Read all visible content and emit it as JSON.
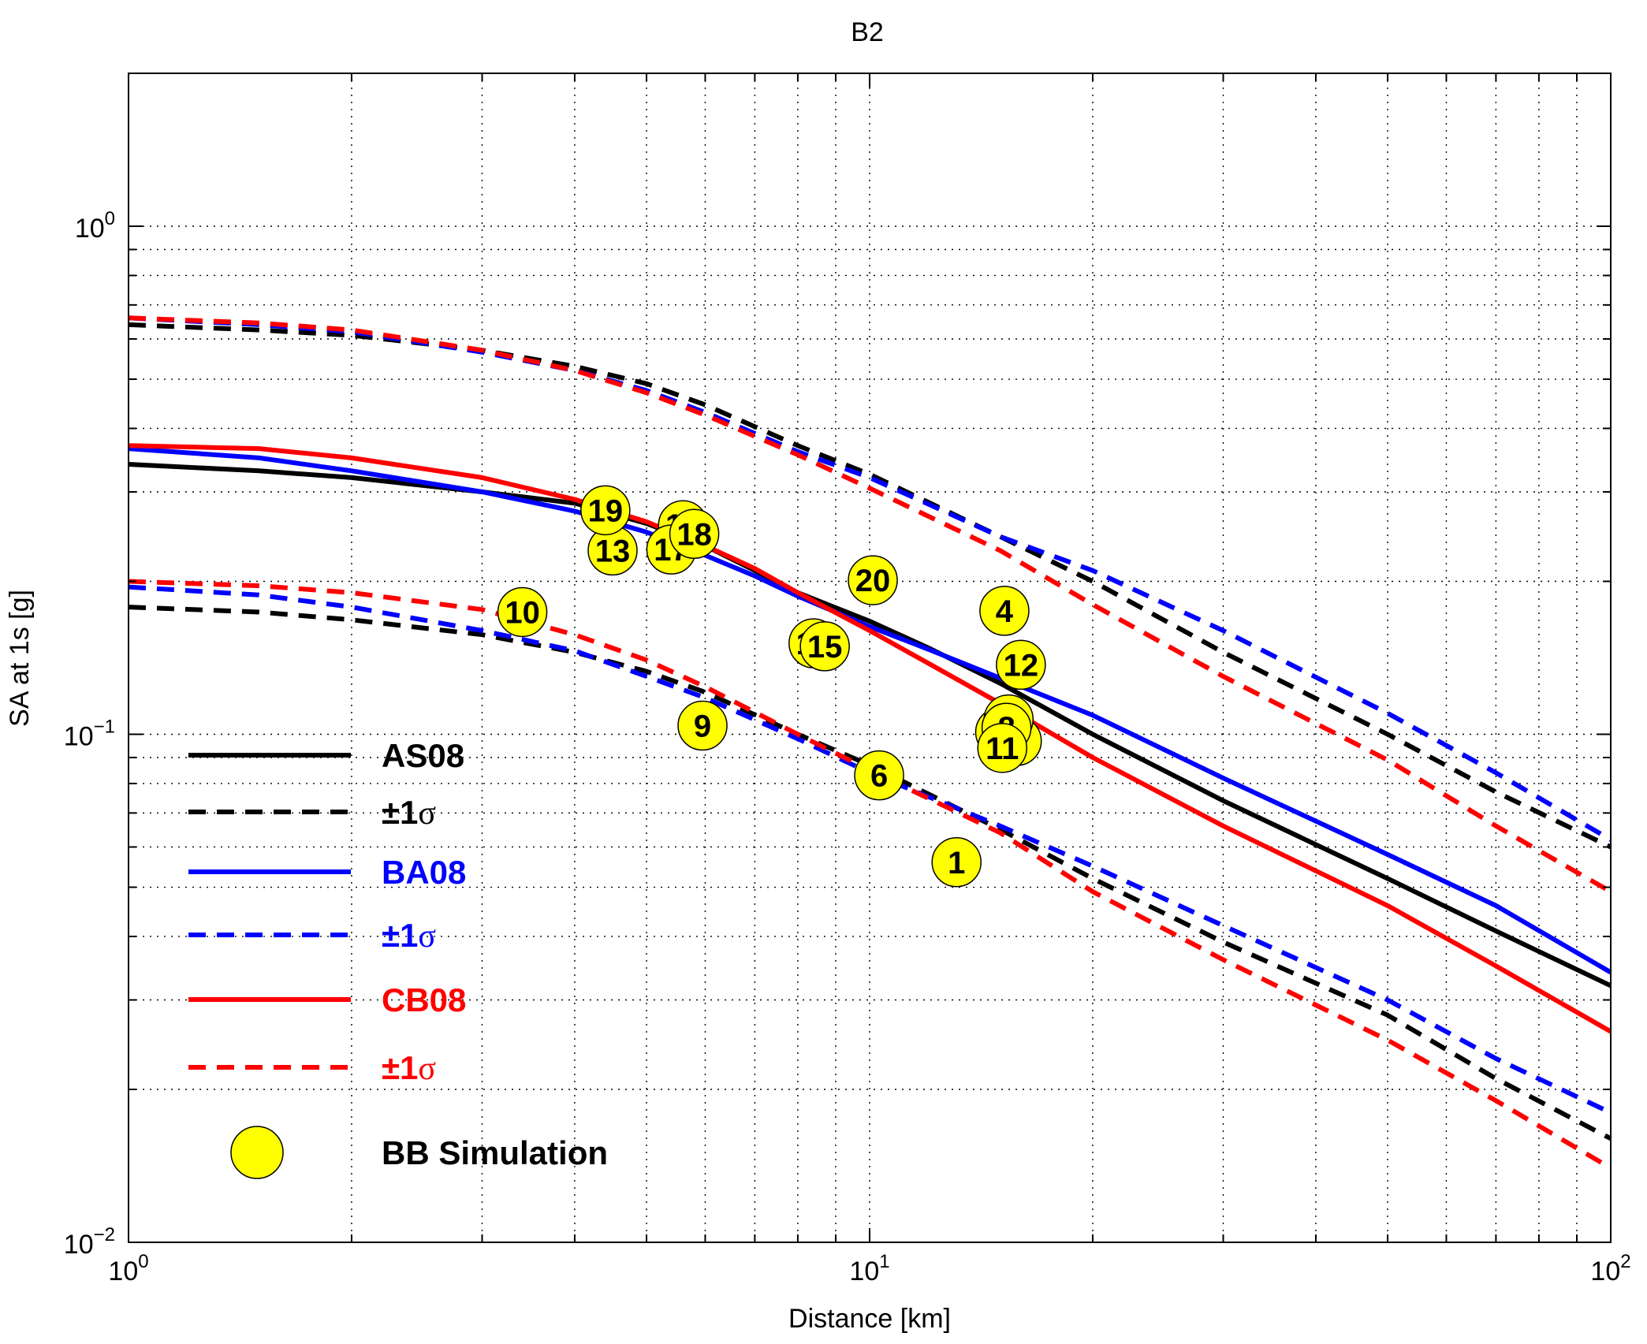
{
  "chart_data": {
    "type": "scatter",
    "title": "B2",
    "xlabel": "Distance [km]",
    "ylabel": "SA at 1s  [g]",
    "x_scale": "log",
    "y_scale": "log",
    "xlim": [
      1,
      100
    ],
    "ylim": [
      0.01,
      2
    ],
    "grid": true,
    "x_ticks": [
      {
        "value": 1,
        "base": "10",
        "exp": "0"
      },
      {
        "value": 10,
        "base": "10",
        "exp": "1"
      },
      {
        "value": 100,
        "base": "10",
        "exp": "2"
      }
    ],
    "y_ticks": [
      {
        "value": 0.01,
        "base": "10",
        "exp": "−2"
      },
      {
        "value": 0.1,
        "base": "10",
        "exp": "−1"
      },
      {
        "value": 1,
        "base": "10",
        "exp": "0"
      }
    ],
    "legend_position": "lower-left",
    "series": [
      {
        "name": "AS08",
        "color": "#000000",
        "style": "solid",
        "points": [
          [
            1,
            0.34
          ],
          [
            1.5,
            0.33
          ],
          [
            2,
            0.32
          ],
          [
            3,
            0.3
          ],
          [
            4,
            0.285
          ],
          [
            5,
            0.26
          ],
          [
            6,
            0.235
          ],
          [
            7,
            0.21
          ],
          [
            8,
            0.19
          ],
          [
            10,
            0.167
          ],
          [
            12,
            0.148
          ],
          [
            15,
            0.126
          ],
          [
            20,
            0.1
          ],
          [
            30,
            0.074
          ],
          [
            50,
            0.052
          ],
          [
            70,
            0.041
          ],
          [
            100,
            0.032
          ]
        ]
      },
      {
        "name": "±1σ",
        "color": "#000000",
        "style": "dashed",
        "points": [
          [
            1,
            0.64
          ],
          [
            1.5,
            0.625
          ],
          [
            2,
            0.61
          ],
          [
            3,
            0.57
          ],
          [
            4,
            0.53
          ],
          [
            5,
            0.49
          ],
          [
            6,
            0.445
          ],
          [
            8,
            0.37
          ],
          [
            10,
            0.325
          ],
          [
            15,
            0.245
          ],
          [
            20,
            0.2
          ],
          [
            30,
            0.145
          ],
          [
            50,
            0.1
          ],
          [
            70,
            0.077
          ],
          [
            100,
            0.06
          ]
        ]
      },
      {
        "name": "±1σ",
        "color": "#000000",
        "style": "dashed",
        "points": [
          [
            1,
            0.178
          ],
          [
            1.5,
            0.174
          ],
          [
            2,
            0.168
          ],
          [
            3,
            0.157
          ],
          [
            4,
            0.145
          ],
          [
            5,
            0.133
          ],
          [
            6,
            0.121
          ],
          [
            8,
            0.1
          ],
          [
            10,
            0.087
          ],
          [
            15,
            0.065
          ],
          [
            20,
            0.052
          ],
          [
            30,
            0.039
          ],
          [
            50,
            0.028
          ],
          [
            70,
            0.021
          ],
          [
            100,
            0.016
          ]
        ]
      },
      {
        "name": "BA08",
        "color": "#0000ff",
        "style": "solid",
        "points": [
          [
            1,
            0.365
          ],
          [
            1.5,
            0.35
          ],
          [
            2,
            0.33
          ],
          [
            3,
            0.3
          ],
          [
            4,
            0.275
          ],
          [
            5,
            0.25
          ],
          [
            6,
            0.225
          ],
          [
            7,
            0.205
          ],
          [
            8,
            0.187
          ],
          [
            10,
            0.163
          ],
          [
            12,
            0.147
          ],
          [
            15,
            0.129
          ],
          [
            20,
            0.109
          ],
          [
            30,
            0.082
          ],
          [
            50,
            0.058
          ],
          [
            70,
            0.046
          ],
          [
            100,
            0.034
          ]
        ]
      },
      {
        "name": "±1σ",
        "color": "#0000ff",
        "style": "dashed",
        "points": [
          [
            1,
            0.66
          ],
          [
            1.5,
            0.64
          ],
          [
            2,
            0.62
          ],
          [
            3,
            0.565
          ],
          [
            4,
            0.52
          ],
          [
            5,
            0.475
          ],
          [
            6,
            0.43
          ],
          [
            8,
            0.36
          ],
          [
            10,
            0.32
          ],
          [
            15,
            0.245
          ],
          [
            20,
            0.21
          ],
          [
            30,
            0.16
          ],
          [
            50,
            0.11
          ],
          [
            70,
            0.084
          ],
          [
            100,
            0.062
          ]
        ]
      },
      {
        "name": "±1σ",
        "color": "#0000ff",
        "style": "dashed",
        "points": [
          [
            1,
            0.195
          ],
          [
            1.5,
            0.188
          ],
          [
            2,
            0.178
          ],
          [
            3,
            0.16
          ],
          [
            4,
            0.146
          ],
          [
            5,
            0.13
          ],
          [
            6,
            0.118
          ],
          [
            8,
            0.098
          ],
          [
            10,
            0.084
          ],
          [
            15,
            0.066
          ],
          [
            20,
            0.055
          ],
          [
            30,
            0.042
          ],
          [
            50,
            0.03
          ],
          [
            70,
            0.023
          ],
          [
            100,
            0.018
          ]
        ]
      },
      {
        "name": "CB08",
        "color": "#ff0000",
        "style": "solid",
        "points": [
          [
            1,
            0.37
          ],
          [
            1.5,
            0.365
          ],
          [
            2,
            0.35
          ],
          [
            3,
            0.32
          ],
          [
            4,
            0.29
          ],
          [
            5,
            0.262
          ],
          [
            6,
            0.235
          ],
          [
            7,
            0.212
          ],
          [
            8,
            0.19
          ],
          [
            10,
            0.16
          ],
          [
            12,
            0.138
          ],
          [
            15,
            0.115
          ],
          [
            20,
            0.09
          ],
          [
            30,
            0.066
          ],
          [
            50,
            0.046
          ],
          [
            70,
            0.035
          ],
          [
            100,
            0.026
          ]
        ]
      },
      {
        "name": "±1σ",
        "color": "#ff0000",
        "style": "dashed",
        "points": [
          [
            1,
            0.66
          ],
          [
            1.5,
            0.645
          ],
          [
            2,
            0.625
          ],
          [
            3,
            0.57
          ],
          [
            4,
            0.52
          ],
          [
            5,
            0.47
          ],
          [
            6,
            0.425
          ],
          [
            8,
            0.355
          ],
          [
            10,
            0.305
          ],
          [
            15,
            0.23
          ],
          [
            20,
            0.18
          ],
          [
            30,
            0.13
          ],
          [
            50,
            0.089
          ],
          [
            70,
            0.066
          ],
          [
            100,
            0.049
          ]
        ]
      },
      {
        "name": "±1σ",
        "color": "#ff0000",
        "style": "dashed",
        "points": [
          [
            1,
            0.2
          ],
          [
            1.5,
            0.196
          ],
          [
            2,
            0.19
          ],
          [
            3,
            0.176
          ],
          [
            4,
            0.157
          ],
          [
            5,
            0.14
          ],
          [
            6,
            0.124
          ],
          [
            8,
            0.1
          ],
          [
            10,
            0.085
          ],
          [
            15,
            0.064
          ],
          [
            20,
            0.049
          ],
          [
            30,
            0.036
          ],
          [
            50,
            0.025
          ],
          [
            70,
            0.019
          ],
          [
            100,
            0.014
          ]
        ]
      }
    ],
    "simulation": {
      "name": "BB Simulation",
      "color": "#ffff00",
      "points": [
        {
          "label": "1",
          "x": 13.1,
          "y": 0.056
        },
        {
          "label": "2",
          "x": 15.0,
          "y": 0.101
        },
        {
          "label": "3",
          "x": 15.6,
          "y": 0.099
        },
        {
          "label": "4",
          "x": 15.2,
          "y": 0.175
        },
        {
          "label": "5",
          "x": 15.8,
          "y": 0.097
        },
        {
          "label": "6",
          "x": 10.3,
          "y": 0.083
        },
        {
          "label": "7",
          "x": 15.4,
          "y": 0.107
        },
        {
          "label": "8",
          "x": 15.3,
          "y": 0.103
        },
        {
          "label": "9",
          "x": 5.95,
          "y": 0.104
        },
        {
          "label": "10",
          "x": 3.4,
          "y": 0.174
        },
        {
          "label": "11",
          "x": 15.1,
          "y": 0.094
        },
        {
          "label": "12",
          "x": 16.0,
          "y": 0.137
        },
        {
          "label": "13",
          "x": 4.5,
          "y": 0.23
        },
        {
          "label": "14",
          "x": 8.4,
          "y": 0.151
        },
        {
          "label": "15",
          "x": 8.7,
          "y": 0.149
        },
        {
          "label": "16",
          "x": 5.6,
          "y": 0.258
        },
        {
          "label": "17",
          "x": 5.4,
          "y": 0.231
        },
        {
          "label": "18",
          "x": 5.8,
          "y": 0.248
        },
        {
          "label": "19",
          "x": 4.4,
          "y": 0.276
        },
        {
          "label": "20",
          "x": 10.1,
          "y": 0.201
        }
      ]
    },
    "legend": [
      {
        "label": "AS08",
        "color": "#000000",
        "style": "solid"
      },
      {
        "label": "±1",
        "sigma": "σ",
        "color": "#000000",
        "style": "dashed"
      },
      {
        "label": "BA08",
        "color": "#0000ff",
        "style": "solid"
      },
      {
        "label": "±1",
        "sigma": "σ",
        "color": "#0000ff",
        "style": "dashed"
      },
      {
        "label": "CB08",
        "color": "#ff0000",
        "style": "solid"
      },
      {
        "label": "±1",
        "sigma": "σ",
        "color": "#ff0000",
        "style": "dashed"
      },
      {
        "label": "BB Simulation",
        "color": "#000000",
        "style": "marker"
      }
    ]
  }
}
